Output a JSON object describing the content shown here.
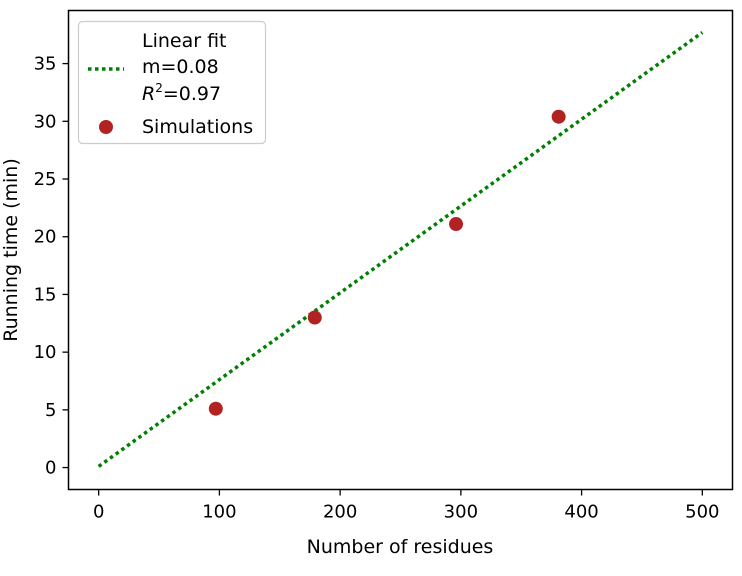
{
  "chart_data": {
    "type": "scatter",
    "title": "",
    "xlabel": "Number of residues",
    "ylabel": "Running time (min)",
    "xlim": [
      -25,
      525
    ],
    "ylim": [
      -1.9,
      39.6
    ],
    "xticks": [
      0,
      100,
      200,
      300,
      400,
      500
    ],
    "yticks": [
      0,
      5,
      10,
      15,
      20,
      25,
      30,
      35
    ],
    "xtick_labels": [
      "0",
      "100",
      "200",
      "300",
      "400",
      "500"
    ],
    "ytick_labels": [
      "0",
      "5",
      "10",
      "15",
      "20",
      "25",
      "30",
      "35"
    ],
    "grid": false,
    "legend_position": "upper-left",
    "series": [
      {
        "name": "Simulations",
        "kind": "scatter",
        "color": "#b22222",
        "x": [
          97,
          179,
          296,
          381
        ],
        "y": [
          5.1,
          13.0,
          21.1,
          30.4
        ]
      },
      {
        "name": "Linear fit",
        "kind": "line",
        "style": "dotted",
        "color": "#008000",
        "slope_label": "m=0.08",
        "r2_label": "=0.97",
        "x": [
          0,
          500
        ],
        "y": [
          0.1,
          37.7
        ]
      }
    ]
  }
}
